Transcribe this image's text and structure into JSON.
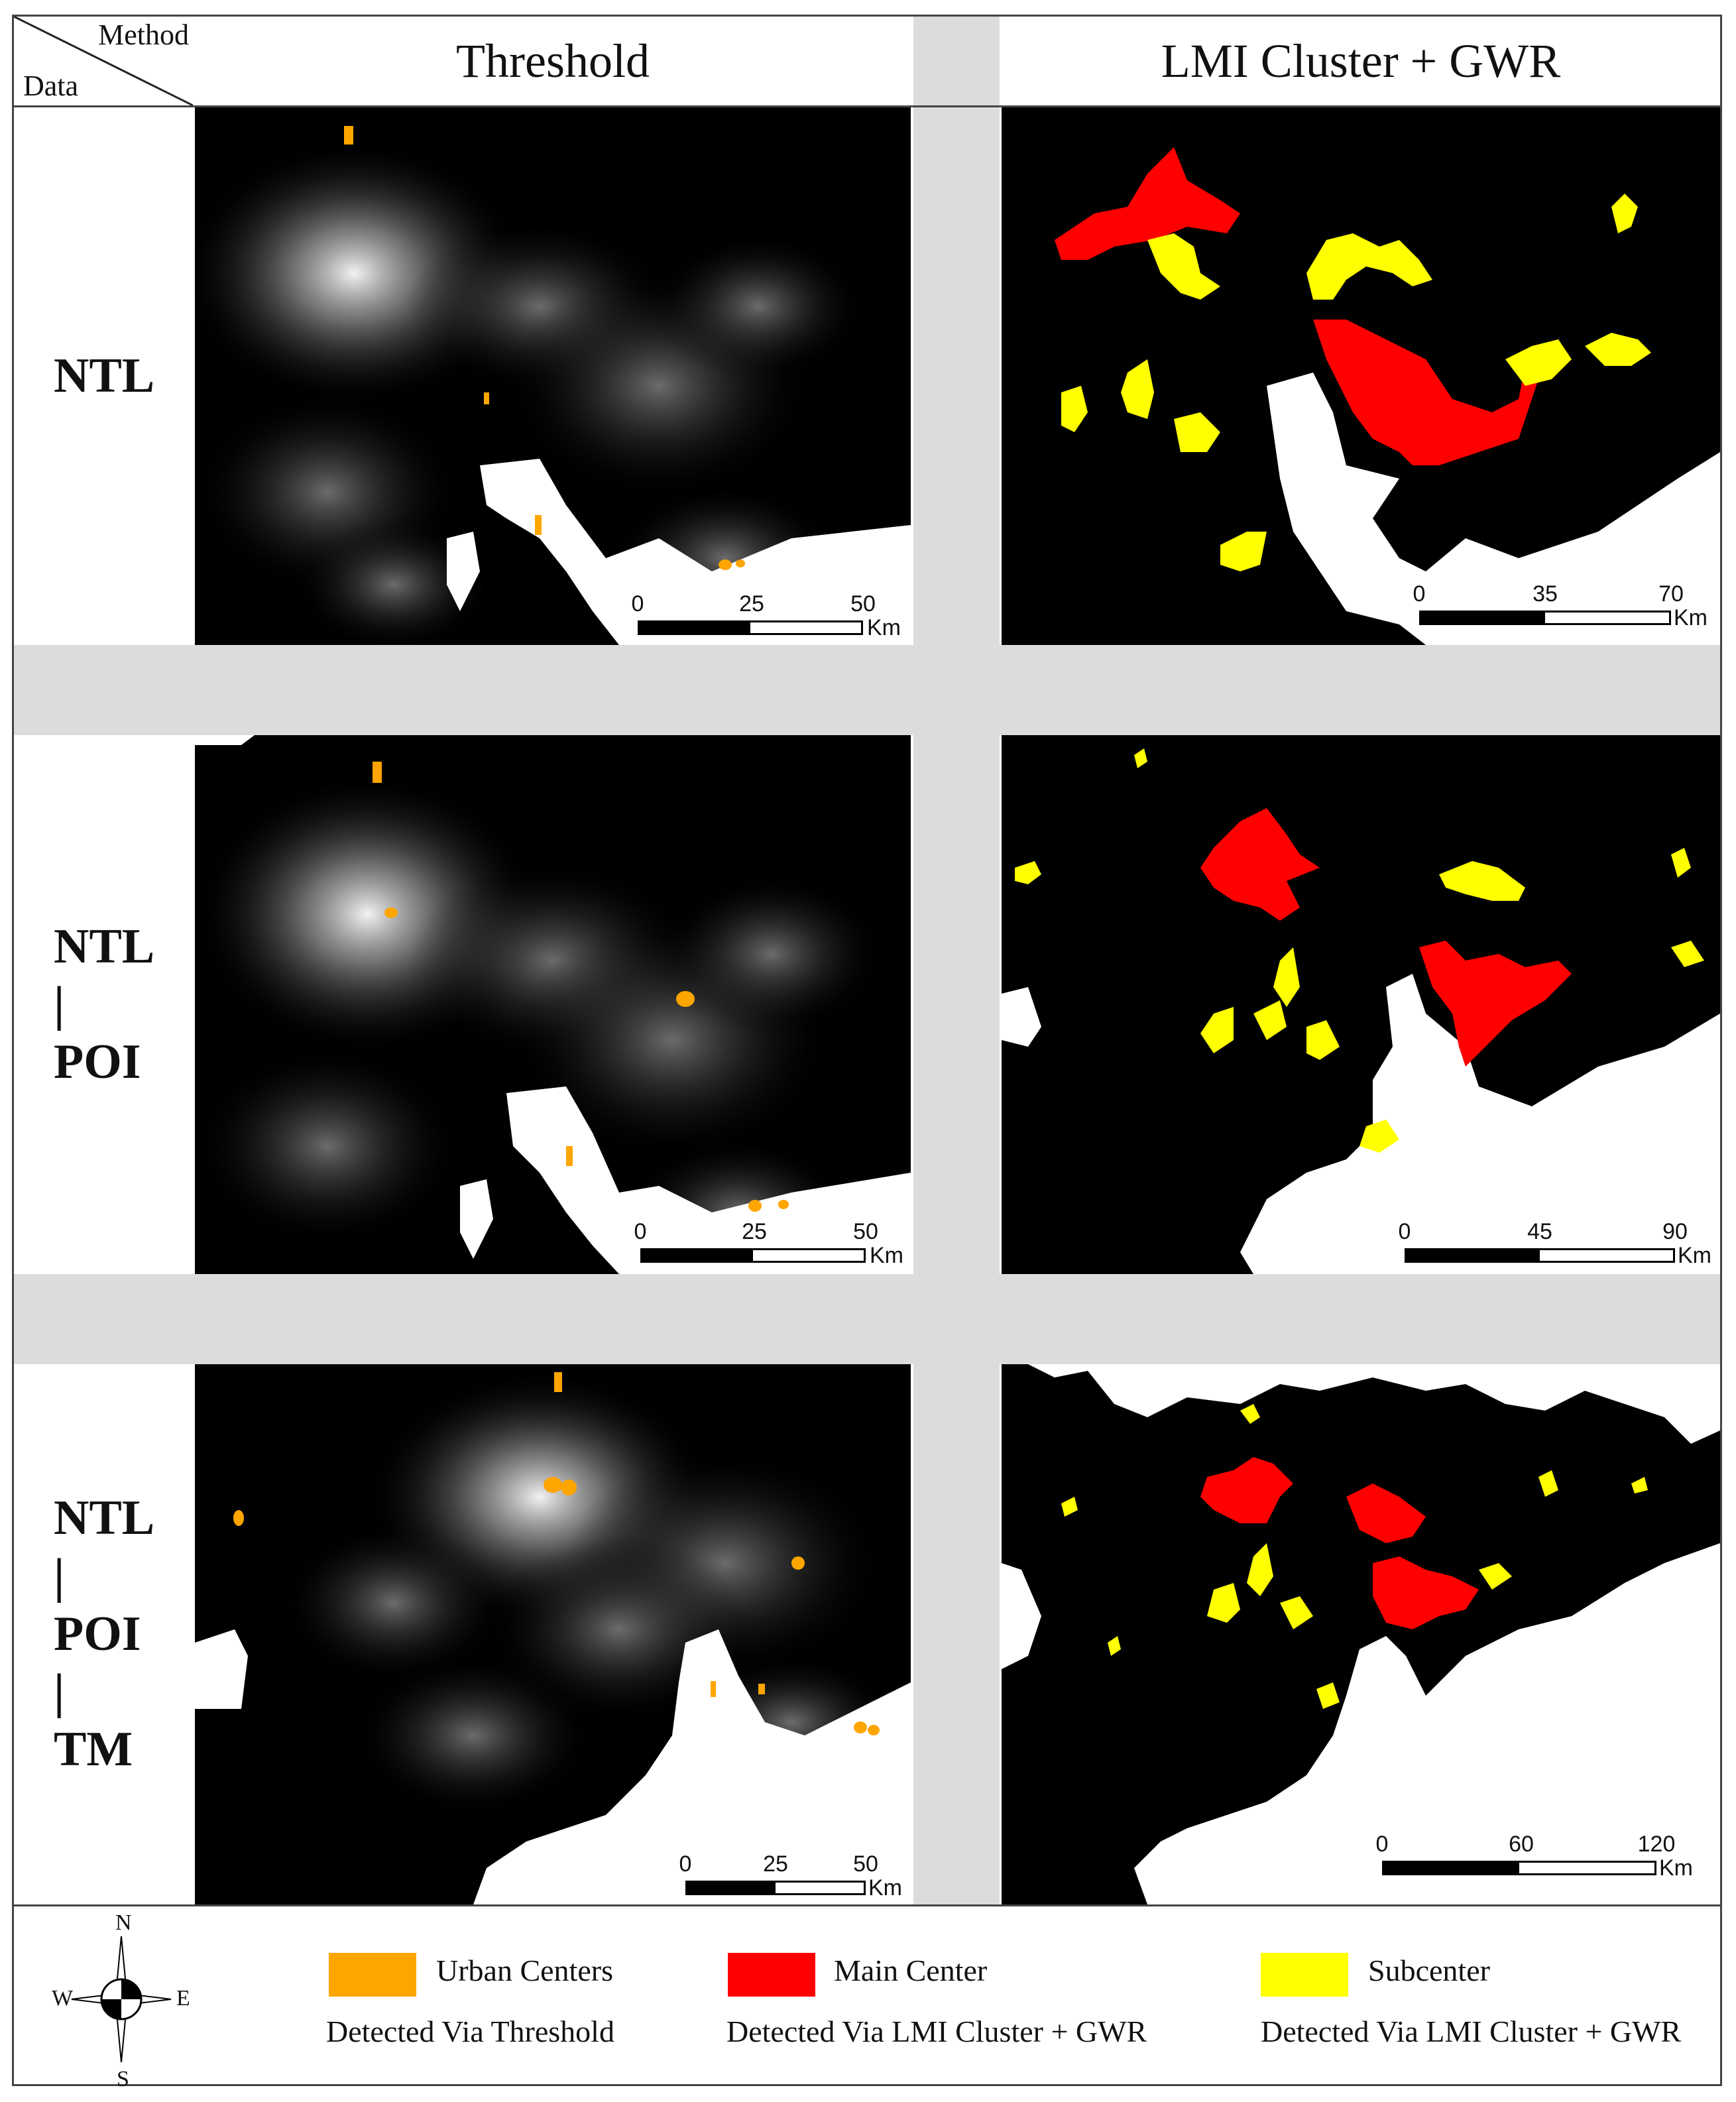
{
  "header": {
    "corner_method": "Method",
    "corner_data": "Data",
    "col_threshold": "Threshold",
    "col_lmi": "LMI Cluster + GWR"
  },
  "rows": [
    {
      "label_lines": [
        "NTL"
      ]
    },
    {
      "label_lines": [
        "NTL",
        "|",
        "POI"
      ]
    },
    {
      "label_lines": [
        "NTL",
        "|",
        "POI",
        "|",
        "TM"
      ]
    }
  ],
  "scalebars": {
    "r1_threshold": {
      "ticks": [
        "0",
        "25",
        "50"
      ],
      "unit": "Km"
    },
    "r1_lmi": {
      "ticks": [
        "0",
        "35",
        "70"
      ],
      "unit": "Km"
    },
    "r2_threshold": {
      "ticks": [
        "0",
        "25",
        "50"
      ],
      "unit": "Km"
    },
    "r2_lmi": {
      "ticks": [
        "0",
        "45",
        "90"
      ],
      "unit": "Km"
    },
    "r3_threshold": {
      "ticks": [
        "0",
        "25",
        "50"
      ],
      "unit": "Km"
    },
    "r3_lmi": {
      "ticks": [
        "0",
        "60",
        "120"
      ],
      "unit": "Km"
    }
  },
  "compass": {
    "n": "N",
    "s": "S",
    "e": "E",
    "w": "W"
  },
  "legend": {
    "urban": {
      "label": "Urban Centers",
      "sub": "Detected Via Threshold",
      "color": "#ffa500"
    },
    "main": {
      "label": "Main Center",
      "sub": "Detected Via LMI Cluster + GWR",
      "color": "#ff0000"
    },
    "sub": {
      "label": "Subcenter",
      "sub": "Detected Via LMI Cluster + GWR",
      "color": "#ffff00"
    }
  },
  "colors": {
    "land_night": "#000000",
    "sea": "#ffffff",
    "city_glow": "#d9d9d9",
    "divider": "#dcdcdc"
  }
}
